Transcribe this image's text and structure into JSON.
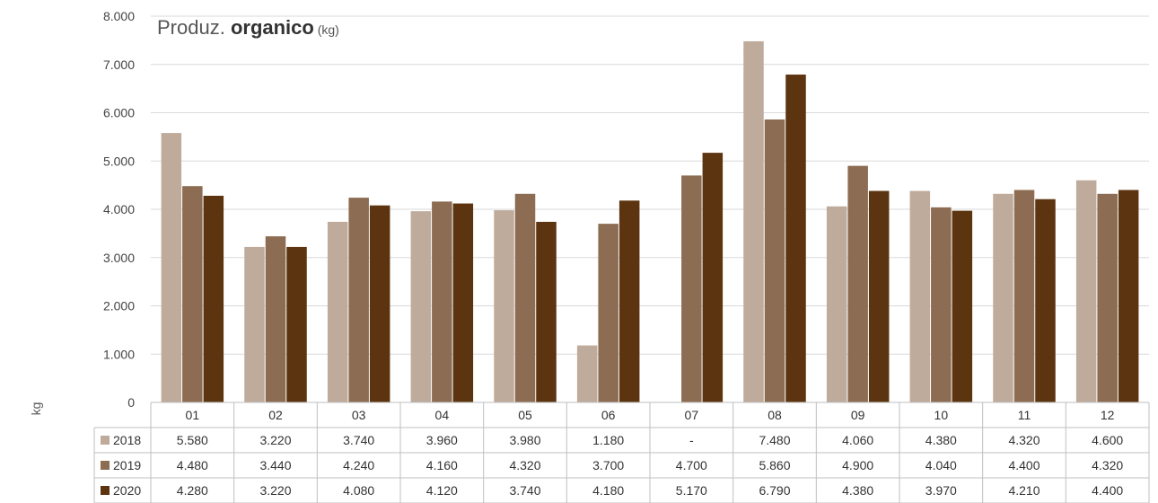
{
  "chart_data": {
    "type": "bar",
    "title_prefix": "Produz. ",
    "title_bold": "organico",
    "title_unit": " (kg)",
    "ylabel": "kg",
    "xlabel": "",
    "ylim": [
      0,
      8000
    ],
    "yticks": [
      "0",
      "1.000",
      "2.000",
      "3.000",
      "4.000",
      "5.000",
      "6.000",
      "7.000",
      "8.000"
    ],
    "yticks_values": [
      0,
      1000,
      2000,
      3000,
      4000,
      5000,
      6000,
      7000,
      8000
    ],
    "grid": true,
    "legend": "table-left",
    "categories": [
      "01",
      "02",
      "03",
      "04",
      "05",
      "06",
      "07",
      "08",
      "09",
      "10",
      "11",
      "12"
    ],
    "series": [
      {
        "name": "2018",
        "color": "#bfab9c",
        "values": [
          5580,
          3220,
          3740,
          3960,
          3980,
          1180,
          null,
          7480,
          4060,
          4380,
          4320,
          4600
        ],
        "labels": [
          "5.580",
          "3.220",
          "3.740",
          "3.960",
          "3.980",
          "1.180",
          "-",
          "7.480",
          "4.060",
          "4.380",
          "4.320",
          "4.600"
        ]
      },
      {
        "name": "2019",
        "color": "#8c6c52",
        "values": [
          4480,
          3440,
          4240,
          4160,
          4320,
          3700,
          4700,
          5860,
          4900,
          4040,
          4400,
          4320
        ],
        "labels": [
          "4.480",
          "3.440",
          "4.240",
          "4.160",
          "4.320",
          "3.700",
          "4.700",
          "5.860",
          "4.900",
          "4.040",
          "4.400",
          "4.320"
        ]
      },
      {
        "name": "2020",
        "color": "#5c340f",
        "values": [
          4280,
          3220,
          4080,
          4120,
          3740,
          4180,
          5170,
          6790,
          4380,
          3970,
          4210,
          4400
        ],
        "labels": [
          "4.280",
          "3.220",
          "4.080",
          "4.120",
          "3.740",
          "4.180",
          "5.170",
          "6.790",
          "4.380",
          "3.970",
          "4.210",
          "4.400"
        ]
      }
    ]
  }
}
